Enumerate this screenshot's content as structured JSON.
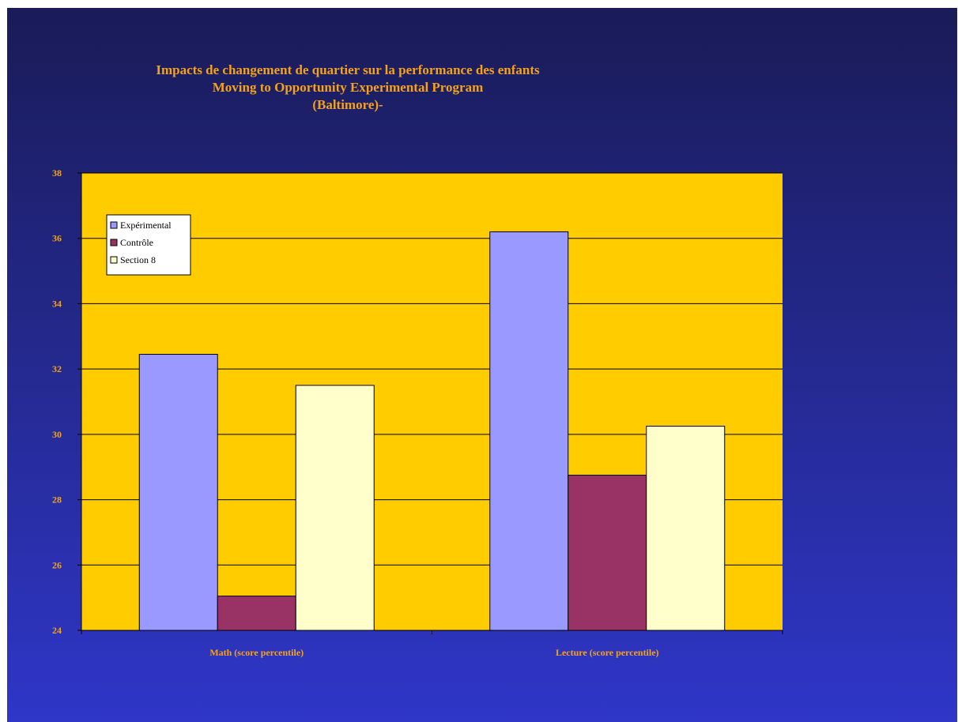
{
  "chart_data": {
    "type": "bar",
    "title": [
      "Impacts de changement de quartier sur la performance des enfants",
      "Moving to Opportunity Experimental Program",
      "(Baltimore)-"
    ],
    "categories": [
      "Math (score percentile)",
      "Lecture (score percentile)"
    ],
    "series": [
      {
        "name": "Expérimental",
        "values": [
          32.45,
          36.2
        ],
        "color": "#9999ff"
      },
      {
        "name": "Contrôle",
        "values": [
          25.05,
          28.75
        ],
        "color": "#993366"
      },
      {
        "name": "Section 8",
        "values": [
          31.5,
          30.25
        ],
        "color": "#ffffcc"
      }
    ],
    "ylim": [
      24,
      38
    ],
    "yticks": [
      24,
      26,
      28,
      30,
      32,
      34,
      36,
      38
    ],
    "xlabel": "",
    "ylabel": "",
    "grid": true,
    "legend": "top-left",
    "plot_background": "#ffcc00",
    "text_color": "#f4a21a"
  }
}
